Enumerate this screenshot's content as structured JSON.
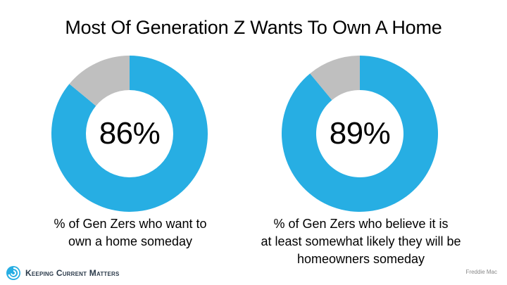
{
  "title": "Most Of Generation Z Wants To Own A Home",
  "colors": {
    "primary": "#27aee3",
    "remainder": "#bfbfbf",
    "logo": "#2b3a4a"
  },
  "chart_data": [
    {
      "type": "pie",
      "variant": "donut",
      "values": [
        86,
        14
      ],
      "center_label": "86%",
      "caption_lines": [
        "% of Gen Zers who want to",
        "own a home someday"
      ]
    },
    {
      "type": "pie",
      "variant": "donut",
      "values": [
        89,
        11
      ],
      "center_label": "89%",
      "caption_lines": [
        "% of Gen Zers who believe it is",
        "at least somewhat likely they will be",
        "homeowners someday"
      ]
    }
  ],
  "footer": {
    "logo_text": "Keeping Current Matters",
    "logo_icon": "kcm-spiral-icon",
    "source": "Freddie Mac"
  }
}
